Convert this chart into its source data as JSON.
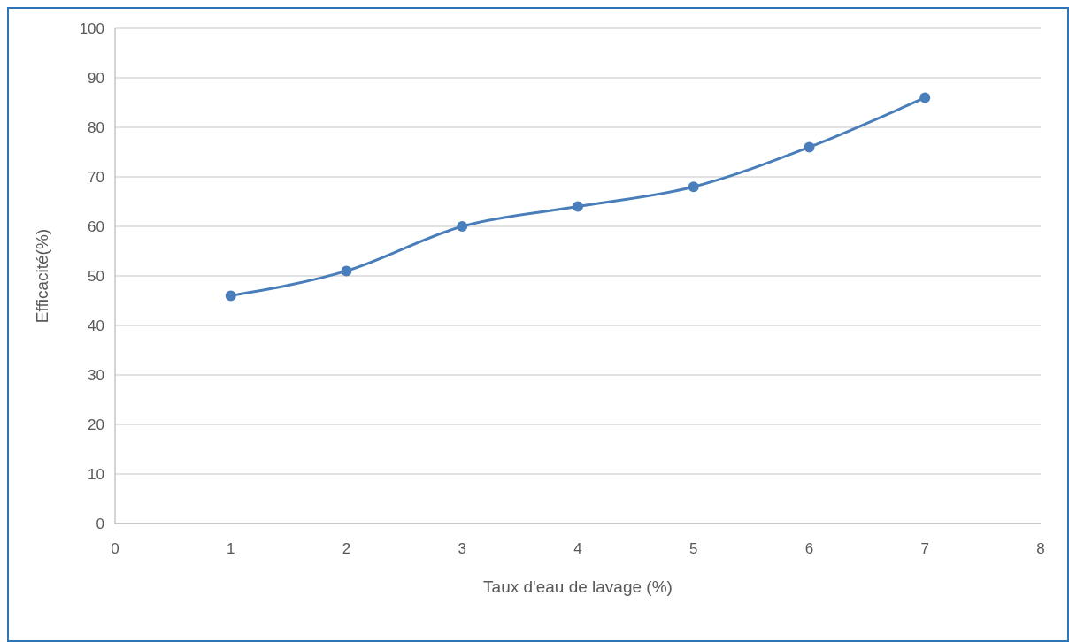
{
  "chart_data": {
    "type": "line",
    "xlabel": "Taux d'eau de lavage (%)",
    "ylabel": "Efficacité(%)",
    "x": [
      1,
      2,
      3,
      4,
      5,
      6,
      7
    ],
    "series": [
      {
        "color": "#4a7ebb",
        "values": [
          46,
          51,
          60,
          64,
          68,
          76,
          86
        ]
      }
    ],
    "xlim": [
      0,
      8
    ],
    "xticks": [
      0,
      1,
      2,
      3,
      4,
      5,
      6,
      7,
      8
    ],
    "ylim": [
      0,
      100
    ],
    "yticks": [
      0,
      10,
      20,
      30,
      40,
      50,
      60,
      70,
      80,
      90,
      100
    ],
    "grid": "y",
    "marker": "circle",
    "line_style": "solid"
  }
}
